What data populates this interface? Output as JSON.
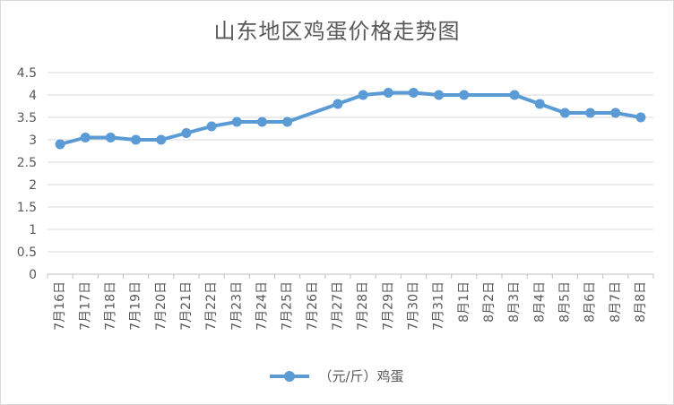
{
  "chart_data": {
    "type": "line",
    "title": "山东地区鸡蛋价格走势图",
    "xlabel": "",
    "ylabel": "",
    "ylim": [
      0,
      4.5
    ],
    "yticks": [
      "0",
      "0.5",
      "1",
      "1.5",
      "2",
      "2.5",
      "3",
      "3.5",
      "4",
      "4.5"
    ],
    "grid": true,
    "legend_position": "bottom",
    "color": "#5b9bd5",
    "categories": [
      "7月16日",
      "7月17日",
      "7月18日",
      "7月19日",
      "7月20日",
      "7月21日",
      "7月22日",
      "7月23日",
      "7月24日",
      "7月25日",
      "7月26日",
      "7月27日",
      "7月28日",
      "7月29日",
      "7月30日",
      "7月31日",
      "8月1日",
      "8月2日",
      "8月3日",
      "8月4日",
      "8月5日",
      "8月6日",
      "8月7日",
      "8月8日"
    ],
    "series": [
      {
        "name": "（元/斤）鸡蛋",
        "values": [
          2.9,
          3.05,
          3.05,
          3.0,
          3.0,
          3.15,
          3.3,
          3.4,
          3.4,
          3.4,
          null,
          3.8,
          4.0,
          4.05,
          4.05,
          4.0,
          4.0,
          null,
          4.0,
          3.8,
          3.6,
          3.6,
          3.6,
          3.5
        ]
      }
    ]
  }
}
